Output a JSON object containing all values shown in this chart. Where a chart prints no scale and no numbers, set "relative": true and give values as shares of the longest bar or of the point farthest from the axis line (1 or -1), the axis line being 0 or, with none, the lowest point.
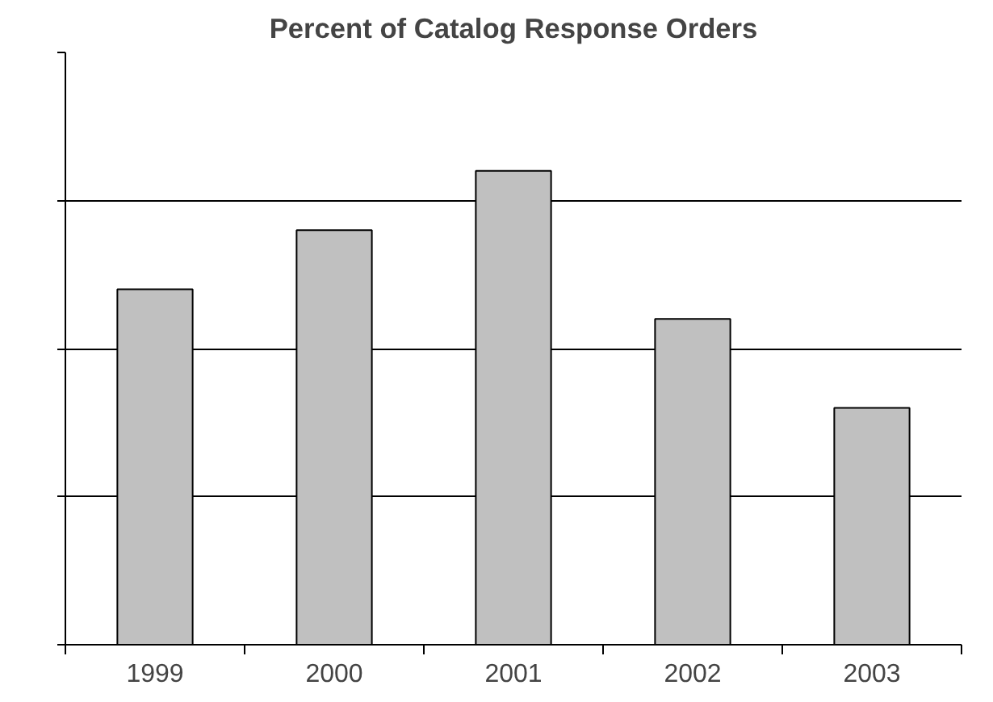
{
  "chart_data": {
    "type": "bar",
    "title": "Percent of Catalog Response Orders",
    "categories": [
      "1999",
      "2000",
      "2001",
      "2002",
      "2003"
    ],
    "values": [
      0.75,
      0.875,
      1,
      0.6875,
      0.5
    ],
    "color": "#c0c0c0",
    "relative": true,
    "grid": "y"
  }
}
